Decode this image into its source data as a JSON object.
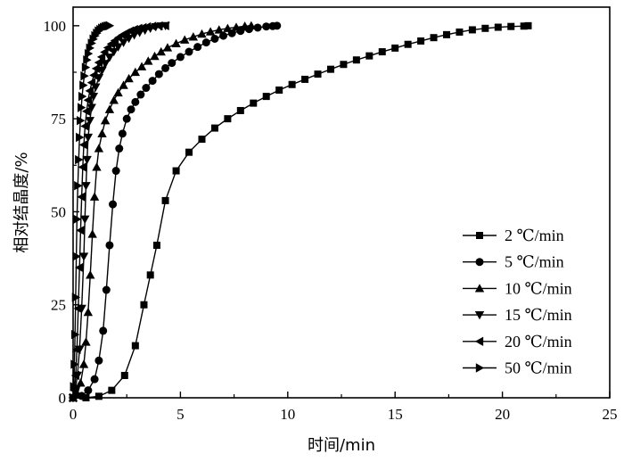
{
  "chart_data": {
    "type": "line",
    "title": "",
    "xlabel": "时间/min",
    "ylabel": "相对结晶度/%",
    "xlim": [
      0,
      25
    ],
    "ylim": [
      0,
      105
    ],
    "xticks": [
      "0",
      "5",
      "10",
      "15",
      "20",
      "25"
    ],
    "yticks": [
      "0",
      "25",
      "50",
      "75",
      "100"
    ],
    "grid": false,
    "legend_position": "bottom-right",
    "series": [
      {
        "name": "2 ℃/min",
        "marker": "square",
        "x": [
          0.0,
          0.6,
          1.2,
          1.8,
          2.4,
          2.9,
          3.3,
          3.6,
          3.9,
          4.3,
          4.8,
          5.4,
          6.0,
          6.6,
          7.2,
          7.8,
          8.4,
          9.0,
          9.6,
          10.2,
          10.8,
          11.4,
          12.0,
          12.6,
          13.2,
          13.8,
          14.4,
          15.0,
          15.6,
          16.2,
          16.8,
          17.4,
          18.0,
          18.6,
          19.2,
          19.8,
          20.4,
          21.0,
          21.2
        ],
        "y": [
          0.0,
          0.0,
          0.4,
          2.0,
          6.0,
          14.0,
          25.0,
          33.0,
          41.0,
          53.0,
          61.0,
          66.0,
          69.5,
          72.5,
          75.0,
          77.2,
          79.2,
          81.0,
          82.7,
          84.2,
          85.6,
          87.0,
          88.3,
          89.6,
          90.8,
          91.9,
          93.0,
          94.0,
          95.0,
          95.9,
          96.8,
          97.6,
          98.3,
          98.9,
          99.3,
          99.6,
          99.8,
          99.9,
          100.0
        ]
      },
      {
        "name": "5 ℃/min",
        "marker": "circle",
        "x": [
          0.0,
          0.4,
          0.7,
          1.0,
          1.2,
          1.4,
          1.55,
          1.7,
          1.85,
          2.0,
          2.15,
          2.3,
          2.5,
          2.7,
          2.9,
          3.15,
          3.4,
          3.7,
          4.0,
          4.3,
          4.6,
          5.0,
          5.4,
          5.8,
          6.2,
          6.6,
          7.0,
          7.4,
          7.8,
          8.2,
          8.6,
          9.0,
          9.3,
          9.5
        ],
        "y": [
          0.0,
          0.5,
          2.0,
          5.0,
          10.0,
          18.0,
          29.0,
          41.0,
          52.0,
          61.0,
          67.0,
          71.0,
          75.0,
          77.5,
          79.5,
          81.5,
          83.3,
          85.2,
          87.0,
          88.6,
          90.0,
          91.6,
          93.0,
          94.3,
          95.5,
          96.5,
          97.3,
          98.0,
          98.6,
          99.1,
          99.5,
          99.8,
          99.9,
          100.0
        ]
      },
      {
        "name": "10 ℃/min",
        "marker": "triangle-up",
        "x": [
          0.0,
          0.2,
          0.35,
          0.5,
          0.6,
          0.7,
          0.8,
          0.9,
          1.0,
          1.1,
          1.2,
          1.35,
          1.5,
          1.7,
          1.9,
          2.1,
          2.35,
          2.6,
          2.9,
          3.2,
          3.5,
          3.8,
          4.1,
          4.4,
          4.8,
          5.2,
          5.6,
          6.0,
          6.4,
          6.8,
          7.2,
          7.6,
          8.0,
          8.3
        ],
        "y": [
          0.0,
          1.0,
          4.0,
          9.0,
          15.0,
          23.0,
          33.0,
          44.0,
          54.0,
          62.0,
          67.0,
          71.0,
          74.5,
          77.5,
          80.0,
          82.0,
          84.0,
          85.8,
          87.5,
          89.0,
          90.5,
          91.8,
          93.0,
          94.1,
          95.2,
          96.2,
          97.0,
          97.8,
          98.4,
          98.9,
          99.3,
          99.6,
          99.9,
          100.0
        ]
      },
      {
        "name": "15 ℃/min",
        "marker": "triangle-down",
        "x": [
          0.0,
          0.1,
          0.2,
          0.3,
          0.4,
          0.5,
          0.55,
          0.6,
          0.65,
          0.7,
          0.78,
          0.86,
          0.95,
          1.05,
          1.2,
          1.35,
          1.5,
          1.7,
          1.9,
          2.1,
          2.35,
          2.6,
          2.85,
          3.1,
          3.35,
          3.6,
          3.85,
          4.1,
          4.3
        ],
        "y": [
          0.0,
          2.0,
          6.0,
          13.0,
          24.0,
          38.0,
          48.0,
          57.0,
          64.0,
          70.0,
          74.5,
          78.0,
          81.0,
          83.5,
          86.0,
          88.0,
          89.8,
          91.5,
          93.0,
          94.3,
          95.5,
          96.6,
          97.5,
          98.2,
          98.8,
          99.3,
          99.7,
          99.9,
          100.0
        ]
      },
      {
        "name": "20 ℃/min",
        "marker": "triangle-left",
        "x": [
          0.0,
          0.06,
          0.12,
          0.18,
          0.24,
          0.3,
          0.35,
          0.4,
          0.45,
          0.5,
          0.56,
          0.63,
          0.7,
          0.78,
          0.87,
          0.97,
          1.08,
          1.2,
          1.33,
          1.47,
          1.62,
          1.78,
          1.95,
          2.12,
          2.3,
          2.48,
          2.66,
          2.85,
          3.05,
          3.25,
          3.45,
          3.7,
          4.0,
          4.3
        ],
        "y": [
          0.0,
          2.0,
          6.0,
          13.0,
          24.0,
          35.0,
          45.0,
          54.0,
          62.0,
          68.0,
          73.0,
          77.0,
          80.0,
          82.5,
          84.7,
          86.7,
          88.5,
          90.1,
          91.6,
          92.9,
          94.1,
          95.1,
          96.0,
          96.8,
          97.5,
          98.1,
          98.6,
          99.0,
          99.3,
          99.5,
          99.7,
          99.85,
          99.95,
          100.0
        ]
      },
      {
        "name": "50 ℃/min",
        "marker": "triangle-right",
        "x": [
          0.0,
          0.03,
          0.06,
          0.09,
          0.12,
          0.15,
          0.18,
          0.22,
          0.26,
          0.3,
          0.34,
          0.38,
          0.42,
          0.47,
          0.52,
          0.58,
          0.64,
          0.71,
          0.78,
          0.86,
          0.94,
          1.02,
          1.1,
          1.18,
          1.26,
          1.34,
          1.42,
          1.5,
          1.58,
          1.65,
          1.7
        ],
        "y": [
          0.0,
          3.0,
          9.0,
          17.0,
          27.0,
          38.0,
          48.0,
          57.0,
          64.0,
          70.0,
          74.5,
          78.0,
          81.0,
          84.0,
          86.5,
          88.8,
          90.8,
          92.5,
          94.0,
          95.3,
          96.4,
          97.3,
          98.0,
          98.6,
          99.0,
          99.35,
          99.6,
          99.8,
          99.9,
          99.95,
          100.0
        ]
      }
    ]
  }
}
